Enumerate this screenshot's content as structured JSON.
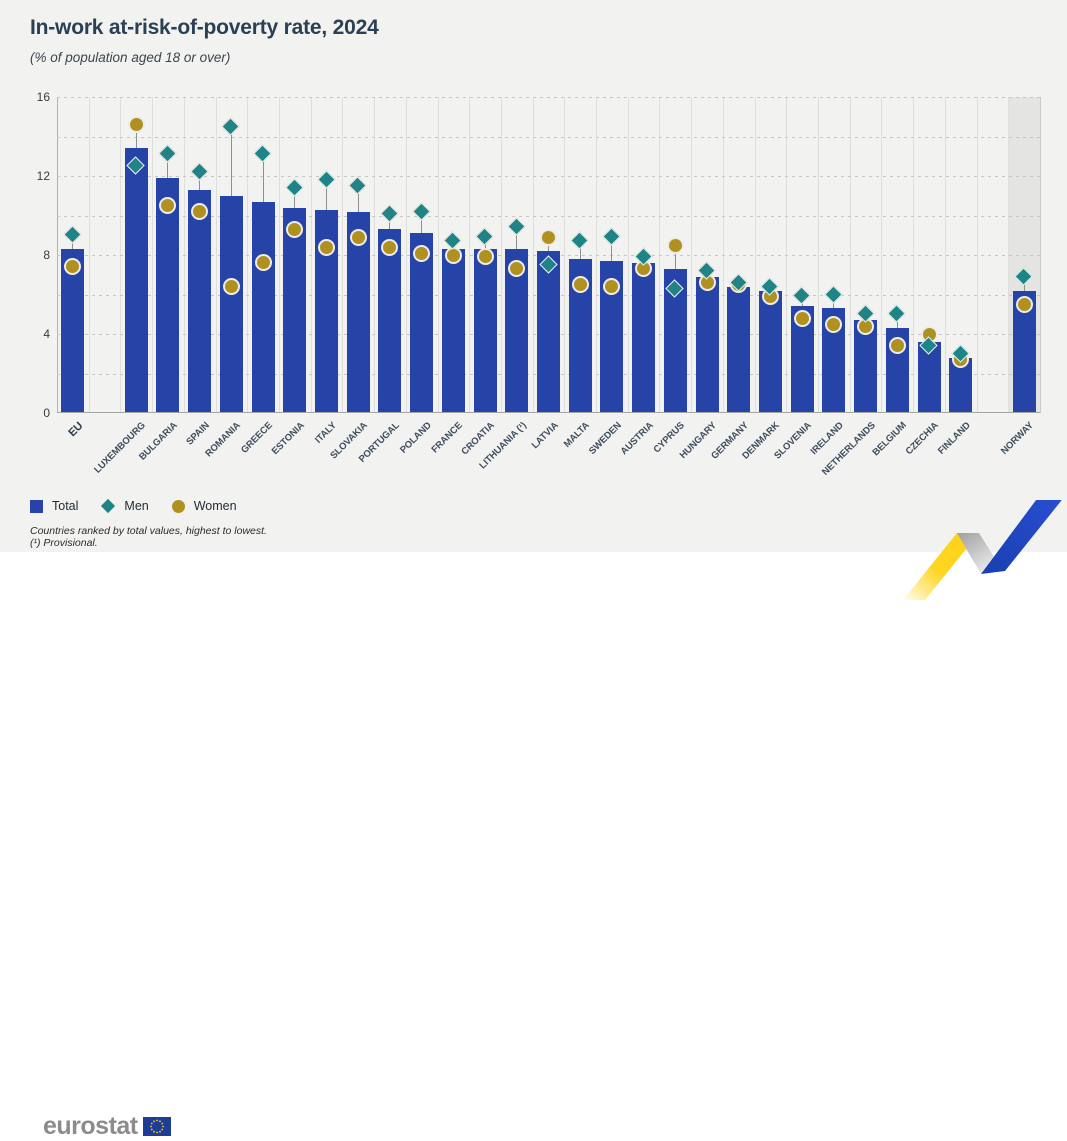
{
  "header": {
    "title": "In-work at-risk-of-poverty rate, 2024",
    "subtitle": "(% of population aged 18 or over)"
  },
  "chart_data": {
    "type": "bar",
    "title": "In-work at-risk-of-poverty rate, 2024",
    "subtitle": "(% of population aged 18 or over)",
    "unit": "% of population aged 18 or over",
    "ylim": [
      0,
      16
    ],
    "yticks": [
      0,
      4,
      8,
      12,
      16
    ],
    "gridline_step": 2,
    "grid": true,
    "legend_position": "bottom-left",
    "highlight_band_country": "NORWAY",
    "series_names": [
      "Total",
      "Men",
      "Women"
    ],
    "rows": [
      {
        "country": "EU",
        "total": 8.3,
        "men": 9.0,
        "women": 7.4
      },
      {
        "country": "LUXEMBOURG",
        "total": 13.4,
        "men": 12.5,
        "women": 14.6
      },
      {
        "country": "BULGARIA",
        "total": 11.9,
        "men": 13.1,
        "women": 10.5
      },
      {
        "country": "SPAIN",
        "total": 11.3,
        "men": 12.2,
        "women": 10.2
      },
      {
        "country": "ROMANIA",
        "total": 11.0,
        "men": 14.5,
        "women": 6.4
      },
      {
        "country": "GREECE",
        "total": 10.7,
        "men": 13.1,
        "women": 7.6
      },
      {
        "country": "ESTONIA",
        "total": 10.4,
        "men": 11.4,
        "women": 9.3
      },
      {
        "country": "ITALY",
        "total": 10.3,
        "men": 11.8,
        "women": 8.4
      },
      {
        "country": "SLOVAKIA",
        "total": 10.2,
        "men": 11.5,
        "women": 8.9
      },
      {
        "country": "PORTUGAL",
        "total": 9.3,
        "men": 10.1,
        "women": 8.4
      },
      {
        "country": "POLAND",
        "total": 9.1,
        "men": 10.2,
        "women": 8.1
      },
      {
        "country": "FRANCE",
        "total": 8.3,
        "men": 8.7,
        "women": 8.0
      },
      {
        "country": "CROATIA",
        "total": 8.3,
        "men": 8.9,
        "women": 7.9
      },
      {
        "country": "LITHUANIA (¹)",
        "total": 8.3,
        "men": 9.4,
        "women": 7.3
      },
      {
        "country": "LATVIA",
        "total": 8.2,
        "men": 7.5,
        "women": 8.9
      },
      {
        "country": "MALTA",
        "total": 7.8,
        "men": 8.7,
        "women": 6.5
      },
      {
        "country": "SWEDEN",
        "total": 7.7,
        "men": 8.9,
        "women": 6.4
      },
      {
        "country": "AUSTRIA",
        "total": 7.6,
        "men": 7.9,
        "women": 7.3
      },
      {
        "country": "CYPRUS",
        "total": 7.3,
        "men": 6.3,
        "women": 8.5
      },
      {
        "country": "HUNGARY",
        "total": 6.9,
        "men": 7.2,
        "women": 6.6
      },
      {
        "country": "GERMANY",
        "total": 6.4,
        "men": 6.6,
        "women": 6.5
      },
      {
        "country": "DENMARK",
        "total": 6.2,
        "men": 6.4,
        "women": 5.9
      },
      {
        "country": "SLOVENIA",
        "total": 5.4,
        "men": 5.9,
        "women": 4.8
      },
      {
        "country": "IRELAND",
        "total": 5.3,
        "men": 6.0,
        "women": 4.5
      },
      {
        "country": "NETHERLANDS",
        "total": 4.7,
        "men": 5.0,
        "women": 4.4
      },
      {
        "country": "BELGIUM",
        "total": 4.3,
        "men": 5.0,
        "women": 3.4
      },
      {
        "country": "CZECHIA",
        "total": 3.6,
        "men": 3.4,
        "women": 4.0
      },
      {
        "country": "FINLAND",
        "total": 2.8,
        "men": 3.0,
        "women": 2.7
      },
      {
        "country": "NORWAY",
        "total": 6.2,
        "men": 6.9,
        "women": 5.5
      }
    ],
    "notes": [
      "Countries ranked by total values, highest to lowest.",
      "(¹) Provisional."
    ]
  },
  "legend": {
    "total": "Total",
    "men": "Men",
    "women": "Women"
  },
  "footnotes": {
    "line1": "Countries ranked by total values, highest to lowest.",
    "line2": "(¹) Provisional."
  },
  "footer": {
    "logo_text": "eurostat"
  },
  "colors": {
    "bar_total": "#2644A7",
    "marker_men": "#208486",
    "marker_women": "#B09120",
    "background": "#F2F2F0",
    "norway_band": "#E4E4E2",
    "ribbon_yellow": "#FFD520",
    "ribbon_blue": "#2B4FD4",
    "eu_flag_blue": "#1E3D96",
    "eu_flag_stars": "#FFCC00"
  }
}
